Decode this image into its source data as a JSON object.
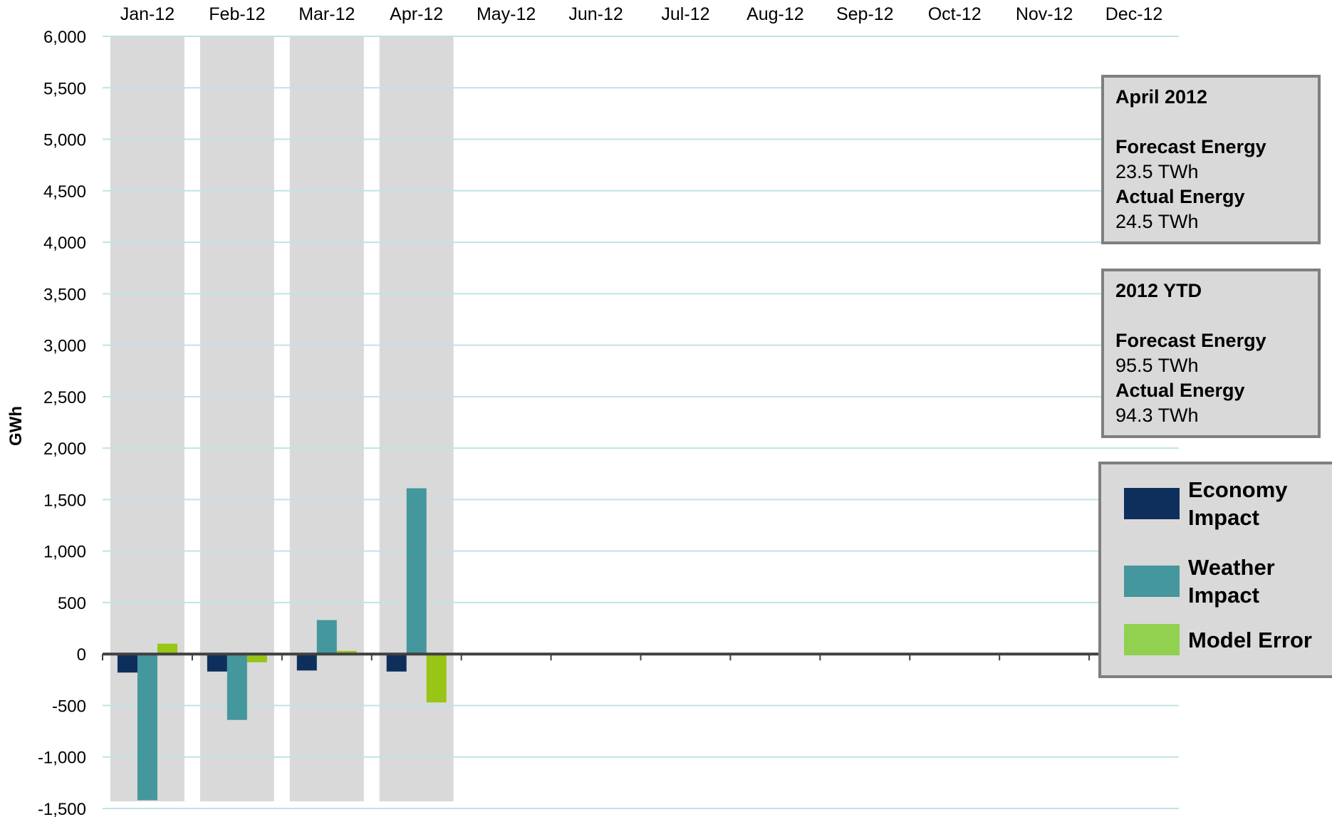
{
  "chart_data": {
    "type": "bar",
    "title": "",
    "xlabel": "",
    "ylabel": "GWh",
    "categories": [
      "Jan-12",
      "Feb-12",
      "Mar-12",
      "Apr-12",
      "May-12",
      "Jun-12",
      "Jul-12",
      "Aug-12",
      "Sep-12",
      "Oct-12",
      "Nov-12",
      "Dec-12"
    ],
    "yticks": [
      "6,000",
      "5,500",
      "5,000",
      "4,500",
      "4,000",
      "3,500",
      "3,000",
      "2,500",
      "2,000",
      "1,500",
      "1,000",
      "500",
      "0",
      "-500",
      "-1,000",
      "-1,500"
    ],
    "ylim": [
      -1500,
      6000
    ],
    "ystep": 500,
    "grid": true,
    "shaded_months": [
      "Jan-12",
      "Feb-12",
      "Mar-12",
      "Apr-12"
    ],
    "series": [
      {
        "name": "Economy Impact",
        "color": "#0e2f5b",
        "values": [
          -180,
          -170,
          -160,
          -170,
          null,
          null,
          null,
          null,
          null,
          null,
          null,
          null
        ]
      },
      {
        "name": "Weather Impact",
        "color": "#44979c",
        "values": [
          -1420,
          -640,
          330,
          1610,
          null,
          null,
          null,
          null,
          null,
          null,
          null,
          null
        ]
      },
      {
        "name": "Model Error",
        "color": "#98c516",
        "values": [
          100,
          -80,
          30,
          -470,
          null,
          null,
          null,
          null,
          null,
          null,
          null,
          null
        ]
      }
    ],
    "legend_position": "right"
  },
  "info_boxes": [
    {
      "heading": "April 2012",
      "forecast_label": "Forecast Energy",
      "forecast_value": "23.5 TWh",
      "actual_label": "Actual Energy",
      "actual_value": "24.5 TWh"
    },
    {
      "heading": "2012 YTD",
      "forecast_label": "Forecast Energy",
      "forecast_value": "95.5 TWh",
      "actual_label": "Actual Energy",
      "actual_value": "94.3 TWh"
    }
  ],
  "legend": {
    "items": [
      {
        "label": "Economy\nImpact",
        "color": "#0e2f5b"
      },
      {
        "label": "Weather\nImpact",
        "color": "#44979c"
      },
      {
        "label": "Model Error",
        "color": "#92d050"
      }
    ]
  },
  "colors": {
    "gridline": "#bfe3e6",
    "shading": "#d9d9d9",
    "zero_line": "#404040",
    "box_border": "#7f7f7f"
  }
}
